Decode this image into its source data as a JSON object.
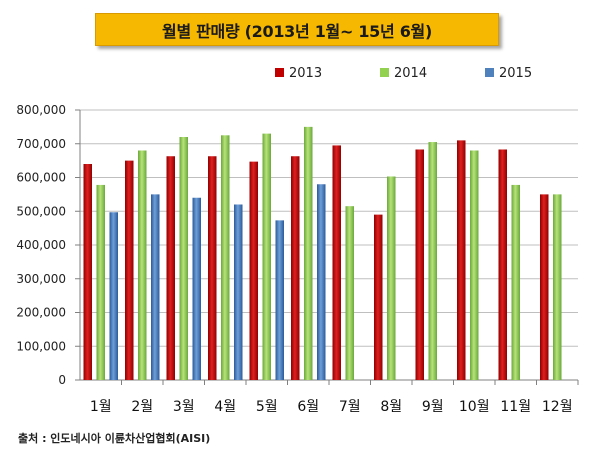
{
  "header": {
    "title": "월별 판매량 (2013년 1월~ 15년 6월)"
  },
  "footer": {
    "source": "출처 : 인도네시아 이륜차산업협회(AISI)"
  },
  "chart_data": {
    "type": "bar",
    "categories": [
      "1월",
      "2월",
      "3월",
      "4월",
      "5월",
      "6월",
      "7월",
      "8월",
      "9월",
      "10월",
      "11월",
      "12월"
    ],
    "series": [
      {
        "name": "2013",
        "color": "#c00000",
        "values": [
          640000,
          650000,
          663000,
          663000,
          647000,
          663000,
          695000,
          490000,
          683000,
          710000,
          683000,
          550000
        ]
      },
      {
        "name": "2014",
        "color": "#92d050",
        "values": [
          578000,
          680000,
          720000,
          725000,
          730000,
          750000,
          515000,
          603000,
          705000,
          680000,
          578000,
          550000
        ]
      },
      {
        "name": "2015",
        "color": "#4f81bd",
        "values": [
          497000,
          550000,
          540000,
          520000,
          473000,
          580000,
          null,
          null,
          null,
          null,
          null,
          null
        ]
      }
    ],
    "y_ticks": [
      "0",
      "100,000",
      "200,000",
      "300,000",
      "400,000",
      "500,000",
      "600,000",
      "700,000",
      "800,000"
    ],
    "ylim": [
      0,
      800000
    ],
    "grid": true,
    "legend_position": "top"
  }
}
